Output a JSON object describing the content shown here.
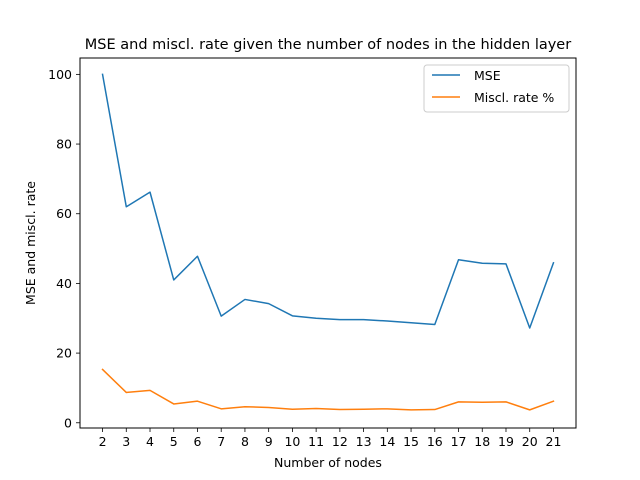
{
  "chart_data": {
    "type": "line",
    "title": "MSE and miscl. rate given the number of nodes in the hidden layer",
    "xlabel": "Number of nodes",
    "ylabel": "MSE and miscl. rate",
    "x": [
      2,
      3,
      4,
      5,
      6,
      7,
      8,
      9,
      10,
      11,
      12,
      13,
      14,
      15,
      16,
      17,
      18,
      19,
      20,
      21
    ],
    "ylim": [
      -1.5,
      104.7
    ],
    "yticks": [
      0,
      20,
      40,
      60,
      80,
      100
    ],
    "grid": false,
    "legend_position": "top-right",
    "series": [
      {
        "name": "MSE",
        "color": "#1f77b4",
        "values": [
          100.0,
          62.0,
          66.2,
          41.0,
          47.8,
          30.6,
          35.4,
          34.2,
          30.7,
          30.0,
          29.6,
          29.6,
          29.2,
          28.7,
          28.2,
          46.8,
          45.8,
          45.6,
          27.2,
          45.9
        ]
      },
      {
        "name": "Miscl. rate %",
        "color": "#ff7f0e",
        "values": [
          15.3,
          8.7,
          9.3,
          5.4,
          6.2,
          4.0,
          4.6,
          4.4,
          3.9,
          4.1,
          3.8,
          3.9,
          4.0,
          3.7,
          3.8,
          6.0,
          5.9,
          6.0,
          3.7,
          6.2
        ]
      }
    ]
  }
}
